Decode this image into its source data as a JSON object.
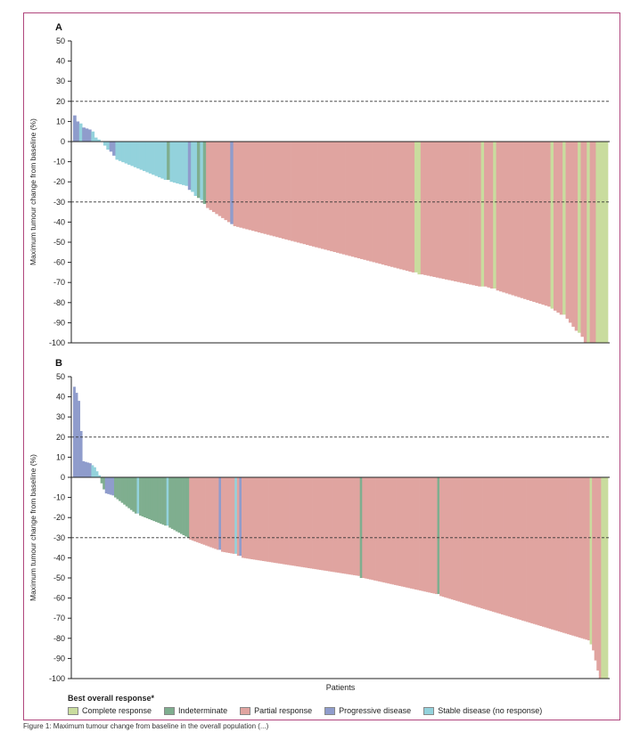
{
  "caption": "Figure 1: Maximum tumour change from baseline in the overall population (...)",
  "legend": {
    "title": "Best overall response*",
    "items": [
      {
        "key": "CR",
        "label": "Complete response",
        "color": "#c9dc9e"
      },
      {
        "key": "IND",
        "label": "Indeterminate",
        "color": "#7fae8f"
      },
      {
        "key": "PR",
        "label": "Partial response",
        "color": "#e0a4a0"
      },
      {
        "key": "PD",
        "label": "Progressive disease",
        "color": "#8f9ccc"
      },
      {
        "key": "SD",
        "label": "Stable disease (no response)",
        "color": "#93d2dc"
      }
    ]
  },
  "chart_data": [
    {
      "type": "bar",
      "panel_label": "A",
      "ylabel": "Maximum tumour change from baseline (%)",
      "xlabel": "",
      "ylim": [
        -100,
        50
      ],
      "yticks": [
        50,
        40,
        30,
        20,
        10,
        0,
        -10,
        -20,
        -30,
        -40,
        -50,
        -60,
        -70,
        -80,
        -90,
        -100
      ],
      "reference_lines": [
        20,
        -30
      ],
      "segments": [
        {
          "n": 1,
          "from": 13,
          "to": 13,
          "response": "PD"
        },
        {
          "n": 1,
          "from": 10,
          "to": 10,
          "response": "PD"
        },
        {
          "n": 1,
          "from": 9,
          "to": 9,
          "response": "SD"
        },
        {
          "n": 3,
          "from": 7,
          "to": 6,
          "response": "PD"
        },
        {
          "n": 1,
          "from": 5,
          "to": 5,
          "response": "SD"
        },
        {
          "n": 3,
          "from": 2,
          "to": 0,
          "response": "SD"
        },
        {
          "n": 2,
          "from": -2,
          "to": -4,
          "response": "SD"
        },
        {
          "n": 2,
          "from": -5,
          "to": -7,
          "response": "PD"
        },
        {
          "n": 17,
          "from": -9,
          "to": -19,
          "response": "SD"
        },
        {
          "n": 1,
          "from": -19,
          "to": -19,
          "response": "IND"
        },
        {
          "n": 6,
          "from": -20,
          "to": -22,
          "response": "SD"
        },
        {
          "n": 1,
          "from": -24,
          "to": -24,
          "response": "PD"
        },
        {
          "n": 2,
          "from": -25,
          "to": -27,
          "response": "SD"
        },
        {
          "n": 1,
          "from": -28,
          "to": -28,
          "response": "IND"
        },
        {
          "n": 1,
          "from": -29,
          "to": -29,
          "response": "SD"
        },
        {
          "n": 1,
          "from": -31,
          "to": -31,
          "response": "IND"
        },
        {
          "n": 8,
          "from": -33,
          "to": -40,
          "response": "PR"
        },
        {
          "n": 1,
          "from": -41,
          "to": -41,
          "response": "PD"
        },
        {
          "n": 60,
          "from": -42,
          "to": -65,
          "response": "PR"
        },
        {
          "n": 2,
          "from": -65,
          "to": -66,
          "response": "CR"
        },
        {
          "n": 20,
          "from": -66,
          "to": -72,
          "response": "PR"
        },
        {
          "n": 1,
          "from": -72,
          "to": -72,
          "response": "CR"
        },
        {
          "n": 3,
          "from": -72,
          "to": -73,
          "response": "PR"
        },
        {
          "n": 1,
          "from": -73,
          "to": -73,
          "response": "CR"
        },
        {
          "n": 18,
          "from": -74,
          "to": -82,
          "response": "PR"
        },
        {
          "n": 1,
          "from": -83,
          "to": -83,
          "response": "CR"
        },
        {
          "n": 3,
          "from": -84,
          "to": -86,
          "response": "PR"
        },
        {
          "n": 1,
          "from": -86,
          "to": -86,
          "response": "CR"
        },
        {
          "n": 4,
          "from": -88,
          "to": -94,
          "response": "PR"
        },
        {
          "n": 1,
          "from": -95,
          "to": -95,
          "response": "CR"
        },
        {
          "n": 2,
          "from": -97,
          "to": -100,
          "response": "PR"
        },
        {
          "n": 1,
          "from": -100,
          "to": -100,
          "response": "CR"
        },
        {
          "n": 2,
          "from": -100,
          "to": -100,
          "response": "PR"
        },
        {
          "n": 4,
          "from": -100,
          "to": -100,
          "response": "CR"
        }
      ]
    },
    {
      "type": "bar",
      "panel_label": "B",
      "ylabel": "Maximum tumour change from baseline (%)",
      "xlabel": "Patients",
      "ylim": [
        -100,
        50
      ],
      "yticks": [
        50,
        40,
        30,
        20,
        10,
        0,
        -10,
        -20,
        -30,
        -40,
        -50,
        -60,
        -70,
        -80,
        -90,
        -100
      ],
      "reference_lines": [
        20,
        -30
      ],
      "segments": [
        {
          "n": 1,
          "from": 45,
          "to": 45,
          "response": "PD"
        },
        {
          "n": 1,
          "from": 42,
          "to": 42,
          "response": "PD"
        },
        {
          "n": 1,
          "from": 38,
          "to": 38,
          "response": "PD"
        },
        {
          "n": 1,
          "from": 23,
          "to": 23,
          "response": "PD"
        },
        {
          "n": 4,
          "from": 8,
          "to": 7,
          "response": "PD"
        },
        {
          "n": 2,
          "from": 6,
          "to": 5,
          "response": "SD"
        },
        {
          "n": 2,
          "from": 3,
          "to": 1,
          "response": "SD"
        },
        {
          "n": 2,
          "from": -3,
          "to": -6,
          "response": "IND"
        },
        {
          "n": 4,
          "from": -8,
          "to": -9,
          "response": "PD"
        },
        {
          "n": 10,
          "from": -10,
          "to": -18,
          "response": "IND"
        },
        {
          "n": 1,
          "from": -18,
          "to": -18,
          "response": "SD"
        },
        {
          "n": 12,
          "from": -19,
          "to": -24,
          "response": "IND"
        },
        {
          "n": 1,
          "from": -24,
          "to": -24,
          "response": "SD"
        },
        {
          "n": 9,
          "from": -25,
          "to": -30,
          "response": "IND"
        },
        {
          "n": 13,
          "from": -31,
          "to": -36,
          "response": "PR"
        },
        {
          "n": 1,
          "from": -36,
          "to": -36,
          "response": "PD"
        },
        {
          "n": 6,
          "from": -37,
          "to": -38,
          "response": "PR"
        },
        {
          "n": 1,
          "from": -38,
          "to": -38,
          "response": "SD"
        },
        {
          "n": 1,
          "from": -39,
          "to": -39,
          "response": "PR"
        },
        {
          "n": 1,
          "from": -39,
          "to": -39,
          "response": "PD"
        },
        {
          "n": 52,
          "from": -40,
          "to": -49,
          "response": "PR"
        },
        {
          "n": 1,
          "from": -50,
          "to": -50,
          "response": "IND"
        },
        {
          "n": 33,
          "from": -50,
          "to": -58,
          "response": "PR"
        },
        {
          "n": 1,
          "from": -58,
          "to": -58,
          "response": "IND"
        },
        {
          "n": 66,
          "from": -59,
          "to": -81,
          "response": "PR"
        },
        {
          "n": 1,
          "from": -83,
          "to": -83,
          "response": "CR"
        },
        {
          "n": 3,
          "from": -86,
          "to": -96,
          "response": "PR"
        },
        {
          "n": 1,
          "from": -100,
          "to": -100,
          "response": "PR"
        },
        {
          "n": 3,
          "from": -100,
          "to": -100,
          "response": "CR"
        }
      ]
    }
  ]
}
